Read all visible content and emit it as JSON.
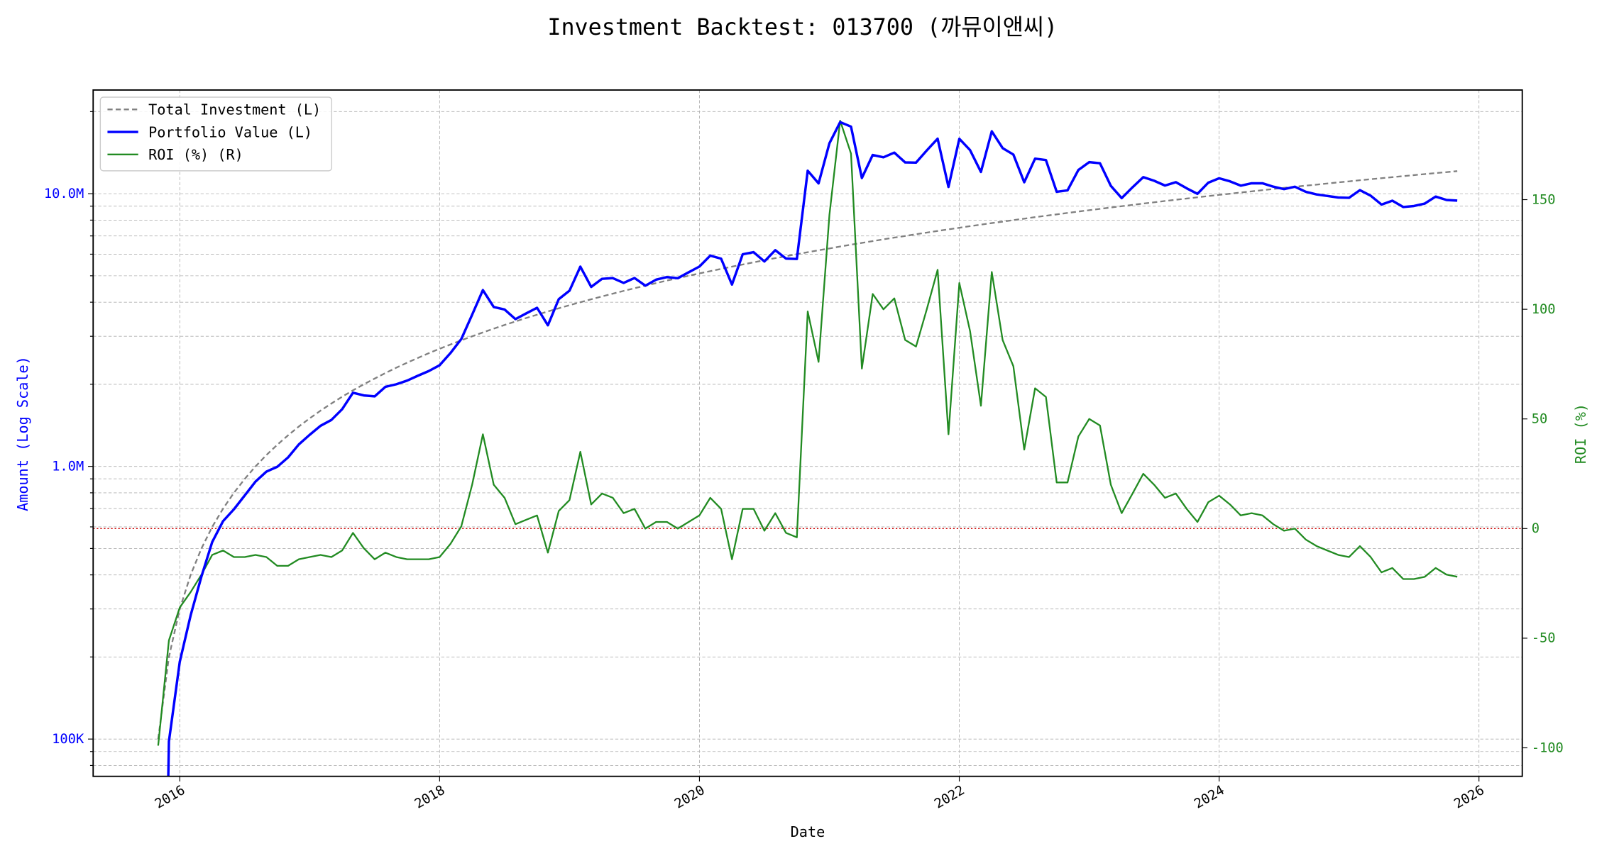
{
  "chart_data": {
    "type": "line",
    "title": "Investment Backtest: 013700 (까뮤이앤씨)",
    "xlabel": "Date",
    "ylabel_left": "Amount (Log Scale)",
    "ylabel_right": "ROI (%)",
    "left_scale": "log",
    "left_ylim": [
      73000,
      24000000
    ],
    "right_ylim": [
      -113,
      200
    ],
    "xlim": [
      "2015-05",
      "2026-05"
    ],
    "grid": true,
    "legend_placement": "top-left",
    "x_ticks": [
      "2016",
      "2018",
      "2020",
      "2022",
      "2024",
      "2026"
    ],
    "left_ticks": [
      {
        "value": 100000,
        "label": "100K"
      },
      {
        "value": 1000000,
        "label": "1.0M"
      },
      {
        "value": 10000000,
        "label": "10.0M"
      }
    ],
    "right_ticks": [
      {
        "value": -100,
        "label": "-100"
      },
      {
        "value": -50,
        "label": "-50"
      },
      {
        "value": 0,
        "label": "0"
      },
      {
        "value": 50,
        "label": "50"
      },
      {
        "value": 100,
        "label": "100"
      },
      {
        "value": 150,
        "label": "150"
      }
    ],
    "reference_line": {
      "axis": "right",
      "value": 0,
      "color": "#cc0000",
      "style": "dotted"
    },
    "start_month": "2015-11",
    "x": [
      "2015-11",
      "2015-12",
      "2016-01",
      "2016-02",
      "2016-03",
      "2016-04",
      "2016-05",
      "2016-06",
      "2016-07",
      "2016-08",
      "2016-09",
      "2016-10",
      "2016-11",
      "2016-12",
      "2017-01",
      "2017-02",
      "2017-03",
      "2017-04",
      "2017-05",
      "2017-06",
      "2017-07",
      "2017-08",
      "2017-09",
      "2017-10",
      "2017-11",
      "2017-12",
      "2018-01",
      "2018-02",
      "2018-03",
      "2018-04",
      "2018-05",
      "2018-06",
      "2018-07",
      "2018-08",
      "2018-09",
      "2018-10",
      "2018-11",
      "2018-12",
      "2019-01",
      "2019-02",
      "2019-03",
      "2019-04",
      "2019-05",
      "2019-06",
      "2019-07",
      "2019-08",
      "2019-09",
      "2019-10",
      "2019-11",
      "2019-12",
      "2020-01",
      "2020-02",
      "2020-03",
      "2020-04",
      "2020-05",
      "2020-06",
      "2020-07",
      "2020-08",
      "2020-09",
      "2020-10",
      "2020-11",
      "2020-12",
      "2021-01",
      "2021-02",
      "2021-03",
      "2021-04",
      "2021-05",
      "2021-06",
      "2021-07",
      "2021-08",
      "2021-09",
      "2021-10",
      "2021-11",
      "2021-12",
      "2022-01",
      "2022-02",
      "2022-03",
      "2022-04",
      "2022-05",
      "2022-06",
      "2022-07",
      "2022-08",
      "2022-09",
      "2022-10",
      "2022-11",
      "2022-12",
      "2023-01",
      "2023-02",
      "2023-03",
      "2023-04",
      "2023-05",
      "2023-06",
      "2023-07",
      "2023-08",
      "2023-09",
      "2023-10",
      "2023-11",
      "2023-12",
      "2024-01",
      "2024-02",
      "2024-03",
      "2024-04",
      "2024-05",
      "2024-06",
      "2024-07",
      "2024-08",
      "2024-09",
      "2024-10",
      "2024-11",
      "2024-12",
      "2025-01",
      "2025-02",
      "2025-03",
      "2025-04",
      "2025-05",
      "2025-06",
      "2025-07",
      "2025-08",
      "2025-09",
      "2025-10",
      "2025-11"
    ],
    "series": [
      {
        "name": "Total Investment (L)",
        "axis": "left",
        "color": "#808080",
        "style": "dashed",
        "unit": "M",
        "values": [
          0.1,
          0.2,
          0.3,
          0.4,
          0.5,
          0.6,
          0.7,
          0.8,
          0.9,
          1.0,
          1.1,
          1.2,
          1.3,
          1.4,
          1.5,
          1.6,
          1.7,
          1.8,
          1.9,
          2.0,
          2.1,
          2.2,
          2.3,
          2.4,
          2.5,
          2.6,
          2.7,
          2.8,
          2.9,
          3.0,
          3.1,
          3.2,
          3.3,
          3.4,
          3.5,
          3.6,
          3.7,
          3.8,
          3.9,
          4.0,
          4.1,
          4.2,
          4.3,
          4.4,
          4.5,
          4.6,
          4.7,
          4.8,
          4.9,
          5.0,
          5.1,
          5.2,
          5.3,
          5.4,
          5.5,
          5.6,
          5.7,
          5.8,
          5.9,
          6.0,
          6.1,
          6.2,
          6.3,
          6.4,
          6.5,
          6.6,
          6.7,
          6.8,
          6.9,
          7.0,
          7.1,
          7.2,
          7.3,
          7.4,
          7.5,
          7.6,
          7.7,
          7.8,
          7.9,
          8.0,
          8.1,
          8.2,
          8.3,
          8.4,
          8.5,
          8.6,
          8.7,
          8.8,
          8.9,
          9.0,
          9.1,
          9.2,
          9.3,
          9.4,
          9.5,
          9.6,
          9.7,
          9.8,
          9.9,
          10.0,
          10.1,
          10.2,
          10.3,
          10.4,
          10.5,
          10.6,
          10.7,
          10.8,
          10.9,
          11.0,
          11.1,
          11.2,
          11.3,
          11.4,
          11.5,
          11.6,
          11.7,
          11.8,
          11.9,
          12.0,
          12.1
        ]
      },
      {
        "name": "Portfolio Value (L)",
        "axis": "left",
        "color": "#0000ff",
        "style": "solid",
        "unit": "M",
        "values": [
          0.001,
          0.098,
          0.192,
          0.284,
          0.395,
          0.528,
          0.63,
          0.696,
          0.783,
          0.88,
          0.957,
          0.996,
          1.079,
          1.204,
          1.305,
          1.408,
          1.479,
          1.62,
          1.862,
          1.82,
          1.806,
          1.958,
          2.001,
          2.064,
          2.15,
          2.236,
          2.349,
          2.604,
          2.929,
          3.6,
          4.433,
          3.84,
          3.762,
          3.468,
          3.64,
          3.816,
          3.293,
          4.104,
          4.407,
          5.4,
          4.551,
          4.872,
          4.902,
          4.708,
          4.905,
          4.6,
          4.841,
          4.944,
          4.9,
          5.15,
          5.406,
          5.928,
          5.777,
          4.644,
          5.995,
          6.104,
          5.643,
          6.206,
          5.782,
          5.76,
          12.139,
          10.912,
          15.309,
          18.304,
          17.615,
          11.418,
          13.869,
          13.6,
          14.145,
          13.02,
          12.993,
          14.4,
          15.914,
          10.582,
          15.9,
          14.44,
          12.012,
          16.926,
          14.694,
          13.92,
          11.016,
          13.448,
          13.28,
          10.164,
          10.285,
          12.212,
          13.05,
          12.936,
          10.68,
          9.63,
          10.556,
          11.5,
          11.16,
          10.716,
          11.02,
          10.464,
          9.991,
          10.976,
          11.385,
          11.1,
          10.706,
          10.914,
          10.918,
          10.608,
          10.395,
          10.6,
          10.165,
          9.936,
          9.81,
          9.68,
          9.657,
          10.304,
          9.831,
          9.12,
          9.43,
          8.932,
          9.009,
          9.204,
          9.758,
          9.48,
          9.438
        ]
      },
      {
        "name": "ROI (%) (R)",
        "axis": "right",
        "color": "#228b22",
        "style": "solid",
        "unit": "%",
        "values": [
          -99,
          -51,
          -36,
          -29,
          -21,
          -12,
          -10,
          -13,
          -13,
          -12,
          -13,
          -17,
          -17,
          -14,
          -13,
          -12,
          -13,
          -10,
          -2,
          -9,
          -14,
          -11,
          -13,
          -14,
          -14,
          -14,
          -13,
          -7,
          1,
          20,
          43,
          20,
          14,
          2,
          4,
          6,
          -11,
          8,
          13,
          35,
          11,
          16,
          14,
          7,
          9,
          0,
          3,
          3,
          0,
          3,
          6,
          14,
          9,
          -14,
          9,
          9,
          -1,
          7,
          -2,
          -4,
          99,
          76,
          143,
          186,
          171,
          73,
          107,
          100,
          105,
          86,
          83,
          100,
          118,
          43,
          112,
          90,
          56,
          117,
          86,
          74,
          36,
          64,
          60,
          21,
          21,
          42,
          50,
          47,
          20,
          7,
          16,
          25,
          20,
          14,
          16,
          9,
          3,
          12,
          15,
          11,
          6,
          7,
          6,
          2,
          -1,
          0,
          -5,
          -8,
          -10,
          -12,
          -13,
          -8,
          -13,
          -20,
          -18,
          -23,
          -23,
          -22,
          -18,
          -21,
          -22
        ]
      }
    ]
  }
}
